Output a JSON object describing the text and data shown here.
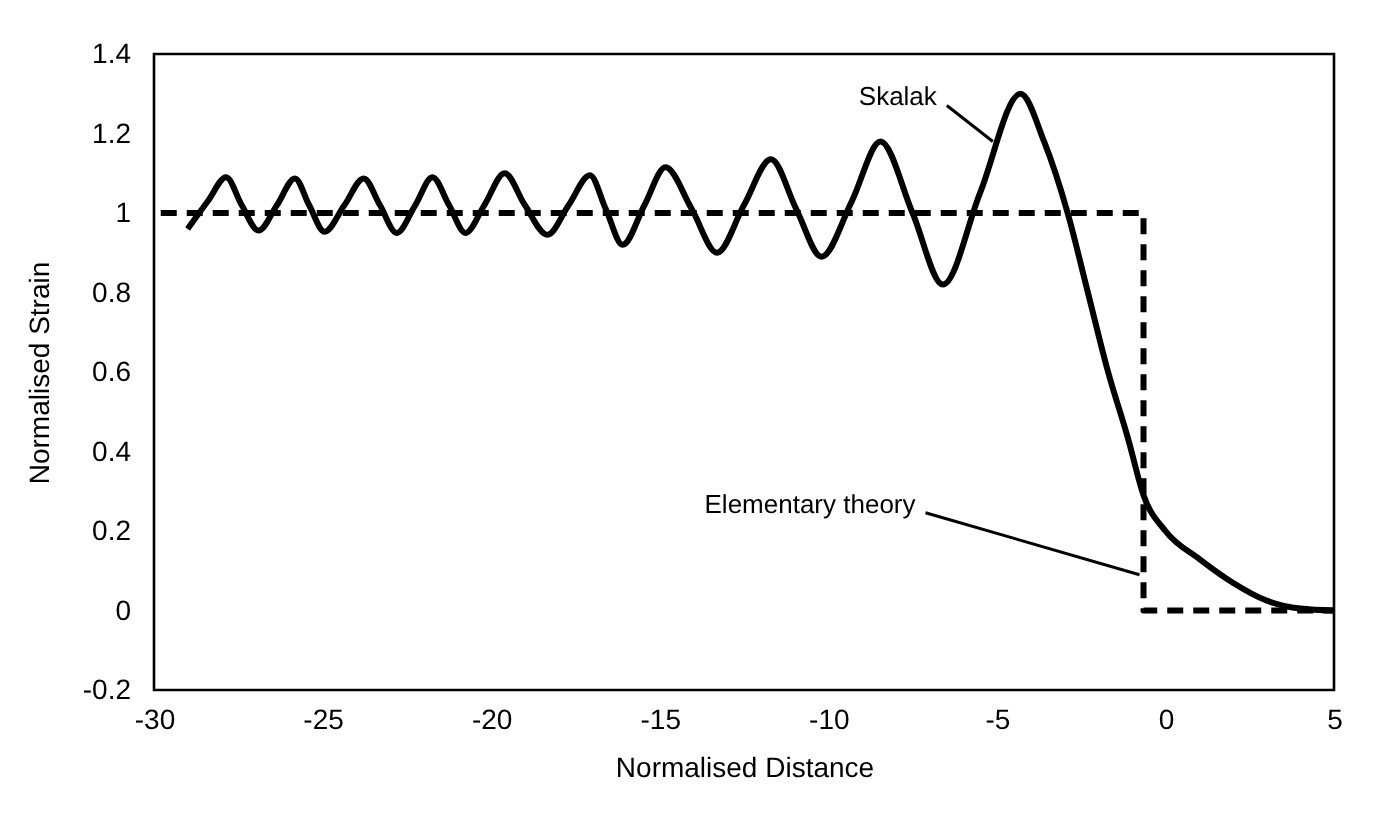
{
  "chart_data": {
    "type": "line",
    "xlabel": "Normalised Distance",
    "ylabel": "Normalised Strain",
    "xlim": [
      -30,
      5
    ],
    "ylim": [
      -0.2,
      1.4
    ],
    "xticks": [
      -30,
      -25,
      -20,
      -15,
      -10,
      -5,
      0,
      5
    ],
    "yticks": [
      -0.2,
      0,
      0.2,
      0.4,
      0.6,
      0.8,
      1,
      1.2,
      1.4
    ],
    "series": [
      {
        "color": "#000000",
        "line_style": "solid",
        "x": [
          -29.0,
          -28.4,
          -27.86,
          -27.4,
          -26.9,
          -26.35,
          -25.82,
          -25.4,
          -24.94,
          -24.35,
          -23.78,
          -23.3,
          -22.8,
          -22.25,
          -21.74,
          -21.25,
          -20.76,
          -20.2,
          -19.6,
          -19.0,
          -18.33,
          -17.7,
          -17.07,
          -16.6,
          -16.1,
          -15.45,
          -14.83,
          -14.05,
          -13.3,
          -12.5,
          -11.7,
          -10.95,
          -10.2,
          -9.3,
          -8.45,
          -7.5,
          -6.6,
          -5.5,
          -4.3,
          -3.6,
          -2.9,
          -2.3,
          -1.7,
          -1.1,
          -0.65,
          0.0,
          1.0,
          2.0,
          3.0,
          4.0,
          5.0
        ],
        "values": [
          0.96,
          1.03,
          1.09,
          1.02,
          0.956,
          1.02,
          1.087,
          1.02,
          0.953,
          1.02,
          1.087,
          1.02,
          0.95,
          1.02,
          1.09,
          1.02,
          0.95,
          1.02,
          1.1,
          1.02,
          0.945,
          1.02,
          1.095,
          1.01,
          0.92,
          1.02,
          1.115,
          1.01,
          0.9,
          1.02,
          1.135,
          1.01,
          0.89,
          1.03,
          1.18,
          1.0,
          0.82,
          1.05,
          1.3,
          1.18,
          1.0,
          0.8,
          0.6,
          0.43,
          0.29,
          0.2,
          0.13,
          0.07,
          0.025,
          0.005,
          0.0
        ]
      },
      {
        "color": "#000000",
        "line_style": "dashed",
        "x": [
          -29.8,
          -0.65,
          -0.65,
          5.0
        ],
        "values": [
          1,
          1,
          0,
          0
        ]
      }
    ],
    "annotations": [
      {
        "text": "Skalak",
        "x": -5.0,
        "y": 1.18
      },
      {
        "text": "Elementary theory",
        "x": -0.65,
        "y": 0.09
      }
    ]
  }
}
